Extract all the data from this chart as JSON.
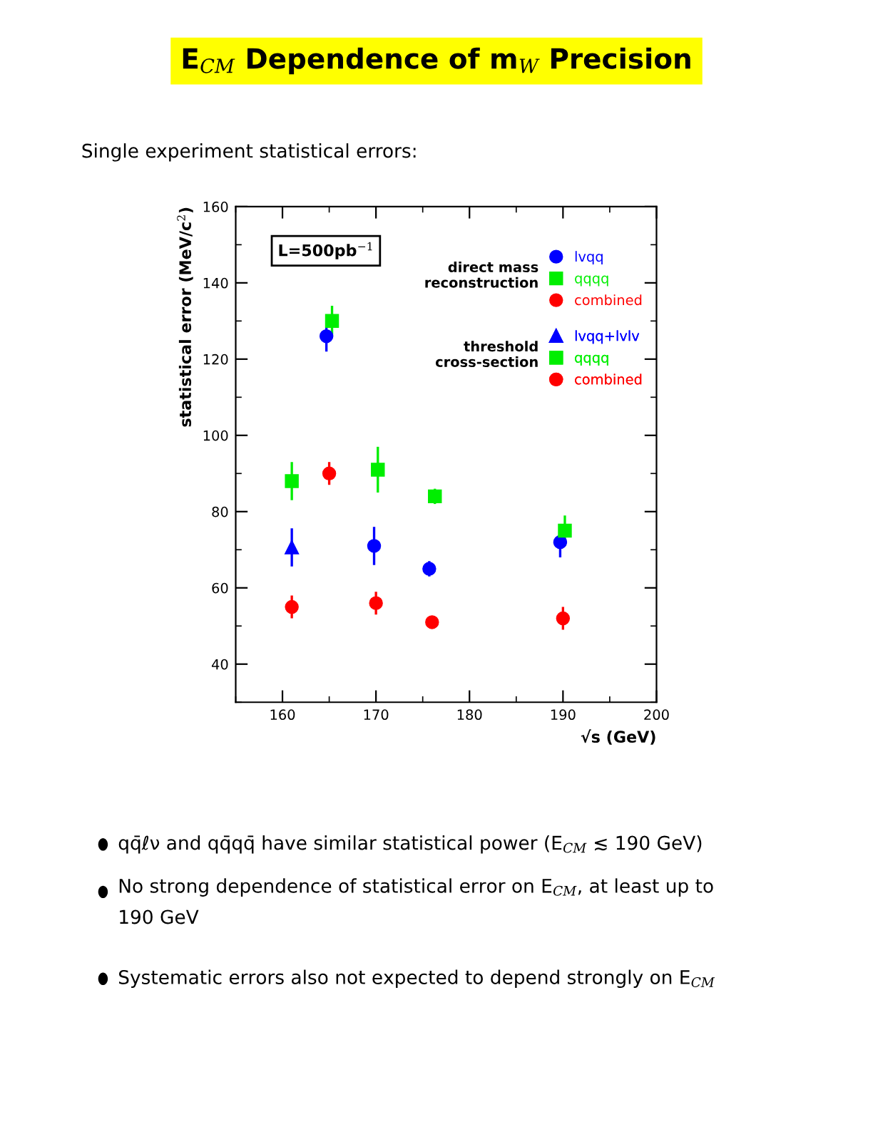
{
  "chart_data": {
    "type": "scatter",
    "title": "E$_{CM}$ Dependence of m$_{W}$ Precision",
    "subtitle": "Single experiment statistical errors:",
    "xlabel": "√s (GeV)",
    "ylabel": "statistical error (MeV/c$^{2}$)",
    "xlim": [
      155,
      200
    ],
    "xticks": [
      160,
      170,
      180,
      190,
      200
    ],
    "ylim": [
      30,
      160
    ],
    "yticks": [
      40,
      60,
      80,
      100,
      120,
      140,
      160
    ],
    "grid": false,
    "legend": "top right",
    "annotations": [
      "L=500pb$^{−1}$",
      "direct mass\nreconstruction",
      "threshold\ncross-section",
      "qq̄ℓν and qq̄qq̄ have similar statistical power (E$_{CM}$ ≲ 190 GeV)",
      "No strong dependence of statistical error on E$_{CM}$, at least up to\n190 GeV",
      "Systematic errors also not expected to depend strongly on E$_{CM}$"
    ],
    "series": [
      {
        "name": "lvqq",
        "color": "#0000ff",
        "marker": "circle",
        "x": [
          164.7,
          169.8,
          175.7,
          189.7
        ],
        "values": [
          126,
          71,
          65,
          72
        ],
        "errors": [
          4,
          5,
          2,
          4
        ]
      },
      {
        "name": "qqqq",
        "color": "#00ee00",
        "marker": "square",
        "x": [
          165.3,
          170.2,
          176.3,
          190.2
        ],
        "values": [
          130,
          91,
          84,
          75
        ],
        "errors": [
          4,
          6,
          2,
          4
        ]
      },
      {
        "name": "combined",
        "color": "#ff0000",
        "marker": "circle",
        "x": [
          165,
          170,
          176,
          190
        ],
        "values": [
          90,
          56,
          51,
          52
        ],
        "errors": [
          3,
          3,
          1,
          3
        ]
      },
      {
        "name": "lvqq+lvlv",
        "color": "#0000ff",
        "marker": "triangle",
        "x": [
          161
        ],
        "values": [
          70.6
        ],
        "errors": [
          5
        ]
      },
      {
        "name": "qqqq",
        "color": "#00ee00",
        "marker": "square",
        "x": [
          161
        ],
        "values": [
          88
        ],
        "errors": [
          5
        ]
      },
      {
        "name": "combined",
        "color": "#ff0000",
        "marker": "circle",
        "x": [
          161
        ],
        "values": [
          55
        ],
        "errors": [
          3
        ]
      }
    ]
  }
}
